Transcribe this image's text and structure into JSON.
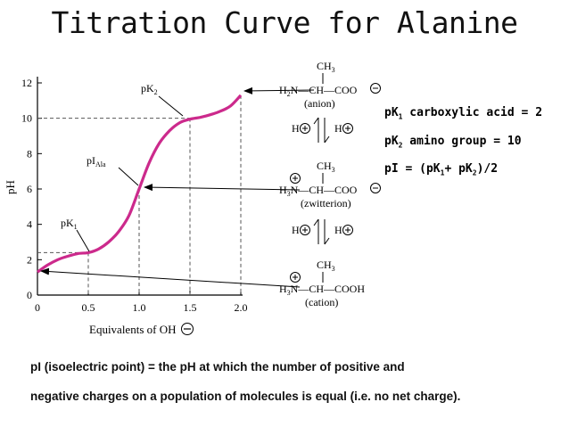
{
  "title": "Titration Curve for Alanine",
  "chart_data": {
    "type": "line",
    "xlabel": "Equivalents of OH",
    "ylabel": "pH",
    "xlim": [
      0,
      2.0
    ],
    "ylim": [
      0,
      12
    ],
    "x_ticks": [
      "0",
      "0.5",
      "1.0",
      "1.5",
      "2.0"
    ],
    "y_ticks": [
      "0",
      "2",
      "4",
      "6",
      "8",
      "10",
      "12"
    ],
    "grid": false,
    "line_color": "#cc2a8c",
    "x": [
      0,
      0.1,
      0.2,
      0.3,
      0.4,
      0.5,
      0.6,
      0.7,
      0.8,
      0.9,
      1.0,
      1.1,
      1.2,
      1.3,
      1.4,
      1.5,
      1.6,
      1.7,
      1.8,
      1.9,
      2.0
    ],
    "y": [
      1.3,
      1.7,
      2.0,
      2.2,
      2.35,
      2.4,
      2.6,
      3.0,
      3.6,
      4.5,
      6.0,
      7.5,
      8.6,
      9.3,
      9.75,
      9.95,
      10.05,
      10.2,
      10.4,
      10.7,
      11.3
    ],
    "annotations": {
      "pk1": {
        "text": "pK",
        "sub": "1"
      },
      "pi": {
        "text": "pI",
        "sub": "Ala"
      },
      "pk2": {
        "text": "pK",
        "sub": "2"
      }
    },
    "dashed_guides": [
      {
        "x": 0.5,
        "y": 2.4
      },
      {
        "x": 1.0,
        "y": 6.0
      },
      {
        "x": 1.5,
        "y": 10.0
      },
      {
        "x": 2.0,
        "y": 11.3
      }
    ]
  },
  "structures": {
    "ch3": "CH",
    "ch3_sub": "3",
    "h3n": "H",
    "h3n_sub": "3",
    "h2n": "H",
    "h2n_sub": "2",
    "n": "N",
    "dash_ch": "—CH—",
    "coo": "COO",
    "cooh": "COOH",
    "h": "H",
    "anion": "(anion)",
    "zwitterion": "(zwitterion)",
    "cation": "(cation)"
  },
  "annotations_right": {
    "pk1_pre": "pK",
    "pk1_sub": "1",
    "pk1_post": " carboxylic acid = 2",
    "pk2_pre": "pK",
    "pk2_sub": "2",
    "pk2_post": " amino group = 10",
    "pi_pre": "pI = (pK",
    "pi_sub1": "1",
    "pi_mid": "+ pK",
    "pi_sub2": "2",
    "pi_post": ")/2"
  },
  "definition": {
    "line1": "pI (isoelectric point) = the pH at which the number of positive and",
    "line2": "negative charges on a population of molecules is equal (i.e. no net charge)."
  }
}
